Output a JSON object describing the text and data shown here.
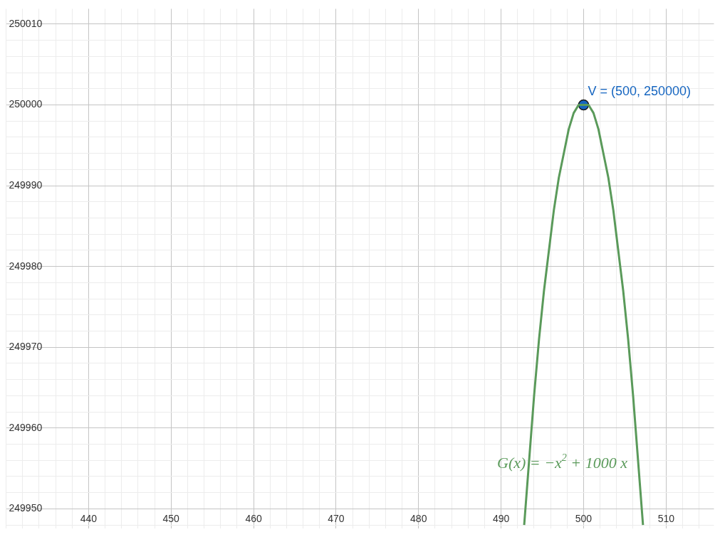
{
  "chart_data": {
    "type": "line",
    "xlim": [
      430,
      515.8
    ],
    "ylim": [
      249947.6,
      250011.9
    ],
    "xticks": [
      {
        "value": 430,
        "label": null
      },
      {
        "value": 432,
        "label": null
      },
      {
        "value": 434,
        "label": null
      },
      {
        "value": 436,
        "label": null
      },
      {
        "value": 438,
        "label": null
      },
      440,
      {
        "value": 442,
        "label": null
      },
      {
        "value": 444,
        "label": null
      },
      {
        "value": 446,
        "label": null
      },
      {
        "value": 448,
        "label": null
      },
      450,
      {
        "value": 452,
        "label": null
      },
      {
        "value": 454,
        "label": null
      },
      {
        "value": 456,
        "label": null
      },
      {
        "value": 458,
        "label": null
      },
      460,
      {
        "value": 462,
        "label": null
      },
      {
        "value": 464,
        "label": null
      },
      {
        "value": 466,
        "label": null
      },
      {
        "value": 468,
        "label": null
      },
      470,
      {
        "value": 472,
        "label": null
      },
      {
        "value": 474,
        "label": null
      },
      {
        "value": 476,
        "label": null
      },
      {
        "value": 478,
        "label": null
      },
      480,
      {
        "value": 482,
        "label": null
      },
      {
        "value": 484,
        "label": null
      },
      {
        "value": 486,
        "label": null
      },
      {
        "value": 488,
        "label": null
      },
      490,
      {
        "value": 492,
        "label": null
      },
      {
        "value": 494,
        "label": null
      },
      {
        "value": 496,
        "label": null
      },
      {
        "value": 498,
        "label": null
      },
      500,
      {
        "value": 502,
        "label": null
      },
      {
        "value": 504,
        "label": null
      },
      {
        "value": 506,
        "label": null
      },
      {
        "value": 508,
        "label": null
      },
      510,
      {
        "value": 512,
        "label": null
      },
      {
        "value": 514,
        "label": null
      }
    ],
    "yticks": [
      {
        "value": 249948,
        "label": null
      },
      249950,
      {
        "value": 249952,
        "label": null
      },
      {
        "value": 249954,
        "label": null
      },
      {
        "value": 249956,
        "label": null
      },
      {
        "value": 249958,
        "label": null
      },
      249960,
      {
        "value": 249962,
        "label": null
      },
      {
        "value": 249964,
        "label": null
      },
      {
        "value": 249966,
        "label": null
      },
      {
        "value": 249968,
        "label": null
      },
      249970,
      {
        "value": 249972,
        "label": null
      },
      {
        "value": 249974,
        "label": null
      },
      {
        "value": 249976,
        "label": null
      },
      {
        "value": 249978,
        "label": null
      },
      249980,
      {
        "value": 249982,
        "label": null
      },
      {
        "value": 249984,
        "label": null
      },
      {
        "value": 249986,
        "label": null
      },
      {
        "value": 249988,
        "label": null
      },
      249990,
      {
        "value": 249992,
        "label": null
      },
      {
        "value": 249994,
        "label": null
      },
      {
        "value": 249996,
        "label": null
      },
      {
        "value": 249998,
        "label": null
      },
      250000,
      {
        "value": 250002,
        "label": null
      },
      {
        "value": 250004,
        "label": null
      },
      {
        "value": 250006,
        "label": null
      },
      {
        "value": 250008,
        "label": null
      },
      250010
    ],
    "grid": true,
    "legend": false,
    "series": [
      {
        "marker": "none",
        "name": "G(x) = −x$^{2}$ + 1000 x",
        "color": "#5a9a5a",
        "x": [
          492.8,
          493.4,
          494,
          494.6,
          495.2,
          495.8,
          496.4,
          497,
          497.6,
          498.2,
          498.8,
          499.4,
          500,
          500.6,
          501.2,
          501.8,
          502.4,
          503,
          503.6,
          504.2,
          504.8,
          505.4,
          506,
          506.6,
          507.2
        ],
        "values": [
          249948,
          249956,
          249964,
          249971,
          249977,
          249982,
          249987,
          249991,
          249994,
          249997,
          249999,
          250000,
          250000,
          250000,
          249999,
          249997,
          249994,
          249991,
          249987,
          249982,
          249977,
          249971,
          249964,
          249956,
          249948
        ]
      },
      {
        "type": "scatter",
        "marker": "circle",
        "color": "#1565c0",
        "x": [
          500
        ],
        "values": [
          250000
        ]
      }
    ],
    "annotations": [
      {
        "text": "V = (500, 250000)",
        "x": 500,
        "y": 250000
      }
    ]
  }
}
